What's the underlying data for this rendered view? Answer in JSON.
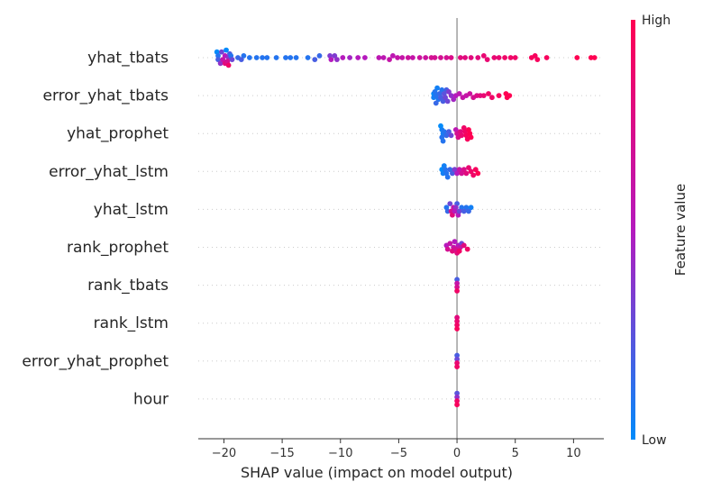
{
  "chart_data": {
    "type": "scatter",
    "chart_kind": "shap-beeswarm",
    "xlabel": "SHAP value (impact on model output)",
    "ylabel": "",
    "xlim": [
      -22.2,
      12.6
    ],
    "xticks": [
      -20,
      -15,
      -10,
      -5,
      0,
      5,
      10
    ],
    "xtick_labels": [
      "−20",
      "−15",
      "−10",
      "−5",
      "0",
      "5",
      "10"
    ],
    "grid": false,
    "colorbar": {
      "label": "Feature value",
      "high_label": "High",
      "low_label": "Low",
      "low_color": "#008bfb",
      "high_color": "#ff0052",
      "mid_color": "#b51abd"
    },
    "features": [
      {
        "name": "yhat_tbats",
        "points": [
          [
            -20.6,
            0.0
          ],
          [
            -20.5,
            0.2
          ],
          [
            -20.3,
            0.4
          ],
          [
            -20.1,
            0.6
          ],
          [
            -19.9,
            0.8
          ],
          [
            -20.5,
            0.1
          ],
          [
            -20.2,
            0.3
          ],
          [
            -19.9,
            0.5
          ],
          [
            -19.7,
            0.7
          ],
          [
            -19.6,
            0.9
          ],
          [
            -19.8,
            0.0
          ],
          [
            -19.5,
            0.2
          ],
          [
            -19.3,
            0.3
          ],
          [
            -19.6,
            0.4
          ],
          [
            -19.4,
            0.1
          ],
          [
            -18.8,
            0.15
          ],
          [
            -18.5,
            0.2
          ],
          [
            -18.3,
            0.1
          ],
          [
            -17.8,
            0.1
          ],
          [
            -17.2,
            0.1
          ],
          [
            -16.7,
            0.1
          ],
          [
            -16.3,
            0.1
          ],
          [
            -15.5,
            0.1
          ],
          [
            -14.7,
            0.1
          ],
          [
            -14.3,
            0.1
          ],
          [
            -13.8,
            0.1
          ],
          [
            -12.8,
            0.1
          ],
          [
            -12.2,
            0.2
          ],
          [
            -11.8,
            0.15
          ],
          [
            -10.9,
            0.35
          ],
          [
            -10.5,
            0.35
          ],
          [
            -10.8,
            0.5
          ],
          [
            -10.3,
            0.4
          ],
          [
            -9.8,
            0.5
          ],
          [
            -9.2,
            0.45
          ],
          [
            -8.5,
            0.5
          ],
          [
            -7.9,
            0.5
          ],
          [
            -6.7,
            0.55
          ],
          [
            -6.3,
            0.55
          ],
          [
            -5.8,
            0.6
          ],
          [
            -5.5,
            0.55
          ],
          [
            -5.1,
            0.6
          ],
          [
            -4.7,
            0.6
          ],
          [
            -4.2,
            0.65
          ],
          [
            -3.8,
            0.6
          ],
          [
            -3.2,
            0.65
          ],
          [
            -2.7,
            0.65
          ],
          [
            -2.2,
            0.7
          ],
          [
            -1.9,
            0.7
          ],
          [
            -1.4,
            0.7
          ],
          [
            -0.9,
            0.7
          ],
          [
            -0.5,
            0.75
          ],
          [
            0.3,
            0.8
          ],
          [
            0.7,
            0.8
          ],
          [
            1.2,
            0.8
          ],
          [
            1.8,
            0.8
          ],
          [
            2.3,
            0.85
          ],
          [
            2.6,
            0.85
          ],
          [
            3.2,
            0.85
          ],
          [
            3.6,
            0.85
          ],
          [
            4.1,
            0.9
          ],
          [
            4.6,
            0.9
          ],
          [
            5.0,
            0.9
          ],
          [
            6.4,
            0.95
          ],
          [
            6.7,
            0.95
          ],
          [
            6.9,
            0.95
          ],
          [
            7.7,
            0.95
          ],
          [
            10.3,
            1.0
          ],
          [
            11.5,
            1.0
          ],
          [
            11.8,
            1.0
          ]
        ]
      },
      {
        "name": "error_yhat_tbats",
        "points": [
          [
            -2.0,
            0.0
          ],
          [
            -2.0,
            0.05
          ],
          [
            -1.9,
            0.1
          ],
          [
            -1.8,
            0.15
          ],
          [
            -1.8,
            0.1
          ],
          [
            -1.7,
            0.05
          ],
          [
            -1.6,
            0.1
          ],
          [
            -1.5,
            0.15
          ],
          [
            -1.4,
            0.2
          ],
          [
            -1.3,
            0.1
          ],
          [
            -1.2,
            0.2
          ],
          [
            -1.1,
            0.25
          ],
          [
            -1.0,
            0.3
          ],
          [
            -0.9,
            0.2
          ],
          [
            -0.8,
            0.3
          ],
          [
            -0.7,
            0.35
          ],
          [
            -0.5,
            0.4
          ],
          [
            -0.3,
            0.45
          ],
          [
            -0.1,
            0.5
          ],
          [
            0.2,
            0.55
          ],
          [
            0.5,
            0.6
          ],
          [
            0.8,
            0.6
          ],
          [
            1.1,
            0.65
          ],
          [
            1.4,
            0.7
          ],
          [
            1.7,
            0.75
          ],
          [
            2.0,
            0.8
          ],
          [
            2.3,
            0.85
          ],
          [
            2.7,
            0.9
          ],
          [
            3.0,
            0.9
          ],
          [
            3.6,
            0.95
          ],
          [
            4.2,
            1.0
          ],
          [
            4.5,
            1.0
          ],
          [
            4.3,
            1.0
          ]
        ]
      },
      {
        "name": "yhat_prophet",
        "points": [
          [
            -1.4,
            0.0
          ],
          [
            -1.3,
            0.05
          ],
          [
            -1.3,
            0.1
          ],
          [
            -1.2,
            0.1
          ],
          [
            -1.2,
            0.05
          ],
          [
            -1.1,
            0.1
          ],
          [
            -0.9,
            0.15
          ],
          [
            -0.7,
            0.2
          ],
          [
            -0.5,
            0.3
          ],
          [
            -0.1,
            0.55
          ],
          [
            0.0,
            0.7
          ],
          [
            0.1,
            0.75
          ],
          [
            0.3,
            0.8
          ],
          [
            0.4,
            0.85
          ],
          [
            0.6,
            0.9
          ],
          [
            0.7,
            0.9
          ],
          [
            0.8,
            0.95
          ],
          [
            0.9,
            0.95
          ],
          [
            1.0,
            1.0
          ],
          [
            1.1,
            1.0
          ],
          [
            1.2,
            1.0
          ]
        ]
      },
      {
        "name": "error_yhat_lstm",
        "points": [
          [
            -1.3,
            0.0
          ],
          [
            -1.2,
            0.05
          ],
          [
            -1.1,
            0.05
          ],
          [
            -1.0,
            0.1
          ],
          [
            -0.9,
            0.1
          ],
          [
            -0.8,
            0.1
          ],
          [
            -0.6,
            0.15
          ],
          [
            -0.4,
            0.2
          ],
          [
            -0.2,
            0.35
          ],
          [
            0.0,
            0.5
          ],
          [
            0.2,
            0.6
          ],
          [
            0.4,
            0.7
          ],
          [
            0.6,
            0.75
          ],
          [
            0.8,
            0.8
          ],
          [
            1.0,
            0.85
          ],
          [
            1.2,
            0.9
          ],
          [
            1.4,
            0.9
          ],
          [
            1.6,
            0.95
          ],
          [
            1.8,
            1.0
          ]
        ]
      },
      {
        "name": "yhat_lstm",
        "points": [
          [
            -0.9,
            0.1
          ],
          [
            -0.8,
            0.15
          ],
          [
            -0.6,
            0.3
          ],
          [
            -0.5,
            0.7
          ],
          [
            -0.4,
            0.8
          ],
          [
            -0.3,
            0.6
          ],
          [
            -0.2,
            0.5
          ],
          [
            -0.1,
            0.4
          ],
          [
            0.0,
            0.2
          ],
          [
            0.1,
            0.5
          ],
          [
            0.2,
            0.3
          ],
          [
            0.4,
            0.1
          ],
          [
            0.6,
            0.2
          ],
          [
            0.8,
            0.1
          ],
          [
            1.0,
            0.15
          ],
          [
            1.2,
            0.05
          ]
        ]
      },
      {
        "name": "rank_prophet",
        "points": [
          [
            -0.9,
            0.5
          ],
          [
            -0.8,
            0.7
          ],
          [
            -0.6,
            0.6
          ],
          [
            -0.4,
            0.8
          ],
          [
            -0.3,
            0.6
          ],
          [
            -0.2,
            0.5
          ],
          [
            -0.1,
            0.7
          ],
          [
            0.0,
            0.8
          ],
          [
            0.1,
            0.5
          ],
          [
            0.2,
            0.9
          ],
          [
            0.3,
            0.6
          ],
          [
            0.4,
            0.3
          ],
          [
            0.6,
            0.8
          ],
          [
            0.9,
            0.9
          ]
        ]
      },
      {
        "name": "rank_tbats",
        "points": [
          [
            0.0,
            0.6
          ],
          [
            0.0,
            0.9
          ],
          [
            0.0,
            0.2
          ],
          [
            0.0,
            0.7
          ]
        ]
      },
      {
        "name": "rank_lstm",
        "points": [
          [
            0.0,
            0.85
          ],
          [
            0.0,
            0.9
          ],
          [
            0.0,
            0.8
          ],
          [
            0.0,
            0.95
          ]
        ]
      },
      {
        "name": "error_yhat_prophet",
        "points": [
          [
            0.0,
            0.2
          ],
          [
            0.0,
            0.9
          ],
          [
            0.0,
            0.3
          ],
          [
            0.0,
            0.85
          ]
        ]
      },
      {
        "name": "hour",
        "points": [
          [
            0.0,
            0.25
          ],
          [
            0.0,
            0.9
          ],
          [
            0.0,
            0.4
          ],
          [
            0.0,
            0.95
          ]
        ]
      }
    ]
  }
}
